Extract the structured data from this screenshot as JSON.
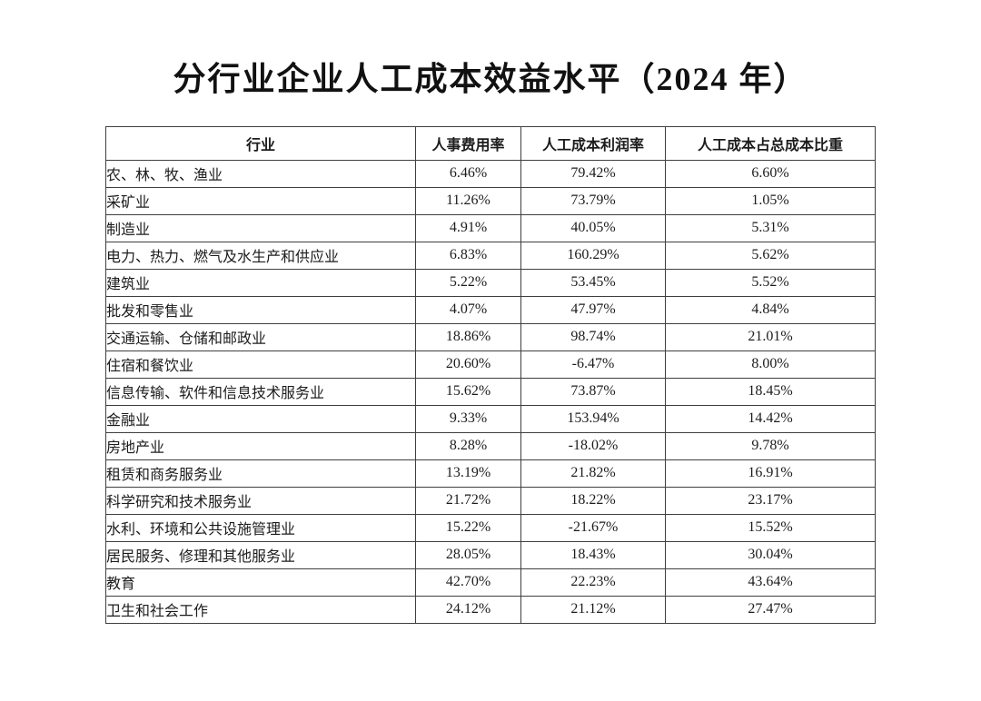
{
  "title": "分行业企业人工成本效益水平（2024 年）",
  "table": {
    "headers": [
      "行业",
      "人事费用率",
      "人工成本利润率",
      "人工成本占总成本比重"
    ],
    "rows": [
      [
        "农、林、牧、渔业",
        "6.46%",
        "79.42%",
        "6.60%"
      ],
      [
        "采矿业",
        "11.26%",
        "73.79%",
        "1.05%"
      ],
      [
        "制造业",
        "4.91%",
        "40.05%",
        "5.31%"
      ],
      [
        "电力、热力、燃气及水生产和供应业",
        "6.83%",
        "160.29%",
        "5.62%"
      ],
      [
        "建筑业",
        "5.22%",
        "53.45%",
        "5.52%"
      ],
      [
        "批发和零售业",
        "4.07%",
        "47.97%",
        "4.84%"
      ],
      [
        "交通运输、仓储和邮政业",
        "18.86%",
        "98.74%",
        "21.01%"
      ],
      [
        "住宿和餐饮业",
        "20.60%",
        "-6.47%",
        "8.00%"
      ],
      [
        "信息传输、软件和信息技术服务业",
        "15.62%",
        "73.87%",
        "18.45%"
      ],
      [
        "金融业",
        "9.33%",
        "153.94%",
        "14.42%"
      ],
      [
        "房地产业",
        "8.28%",
        "-18.02%",
        "9.78%"
      ],
      [
        "租赁和商务服务业",
        "13.19%",
        "21.82%",
        "16.91%"
      ],
      [
        "科学研究和技术服务业",
        "21.72%",
        "18.22%",
        "23.17%"
      ],
      [
        "水利、环境和公共设施管理业",
        "15.22%",
        "-21.67%",
        "15.52%"
      ],
      [
        "居民服务、修理和其他服务业",
        "28.05%",
        "18.43%",
        "30.04%"
      ],
      [
        "教育",
        "42.70%",
        "22.23%",
        "43.64%"
      ],
      [
        "卫生和社会工作",
        "24.12%",
        "21.12%",
        "27.47%"
      ]
    ]
  }
}
